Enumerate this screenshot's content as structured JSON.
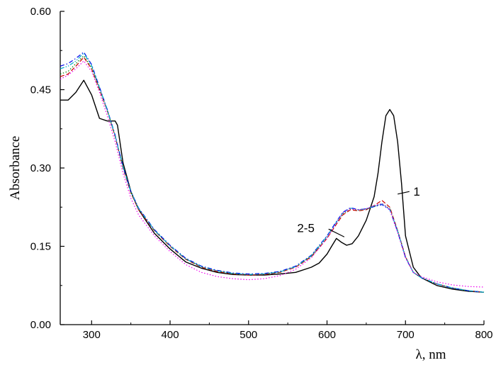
{
  "chart_data": {
    "type": "line",
    "title": "",
    "xlabel": "λ, nm",
    "ylabel": "Absorbance",
    "xlim": [
      260,
      800
    ],
    "ylim": [
      0.0,
      0.6
    ],
    "x_ticks": [
      {
        "value": 300,
        "label": "300"
      },
      {
        "value": 400,
        "label": "400"
      },
      {
        "value": 500,
        "label": "500"
      },
      {
        "value": 600,
        "label": "600"
      },
      {
        "value": 700,
        "label": "700"
      },
      {
        "value": 800,
        "label": "800"
      }
    ],
    "y_ticks": [
      {
        "value": 0.0,
        "label": "0.00"
      },
      {
        "value": 0.15,
        "label": "0.15"
      },
      {
        "value": 0.3,
        "label": "0.30"
      },
      {
        "value": 0.45,
        "label": "0.45"
      },
      {
        "value": 0.6,
        "label": "0.60"
      }
    ],
    "grid": false,
    "legend": "none",
    "series": [
      {
        "color": "#000000",
        "style": "solid",
        "x": [
          260,
          270,
          280,
          290,
          300,
          310,
          320,
          330,
          333,
          340,
          350,
          360,
          380,
          400,
          420,
          440,
          460,
          480,
          500,
          520,
          540,
          560,
          580,
          590,
          600,
          605,
          612,
          618,
          625,
          632,
          640,
          650,
          660,
          665,
          670,
          675,
          680,
          685,
          690,
          695,
          700,
          710,
          720,
          740,
          760,
          780,
          800
        ],
        "y": [
          0.43,
          0.43,
          0.445,
          0.468,
          0.44,
          0.395,
          0.39,
          0.39,
          0.382,
          0.31,
          0.255,
          0.22,
          0.175,
          0.145,
          0.12,
          0.108,
          0.1,
          0.096,
          0.095,
          0.095,
          0.097,
          0.1,
          0.11,
          0.118,
          0.135,
          0.148,
          0.165,
          0.158,
          0.152,
          0.155,
          0.17,
          0.2,
          0.245,
          0.29,
          0.35,
          0.4,
          0.412,
          0.4,
          0.35,
          0.27,
          0.17,
          0.11,
          0.09,
          0.075,
          0.068,
          0.064,
          0.062
        ]
      },
      {
        "color": "#cc0000",
        "style": "dashed",
        "x": [
          260,
          270,
          280,
          290,
          300,
          310,
          320,
          330,
          340,
          350,
          360,
          380,
          400,
          420,
          440,
          460,
          480,
          500,
          520,
          540,
          560,
          580,
          600,
          610,
          620,
          630,
          640,
          650,
          660,
          670,
          680,
          690,
          700,
          710,
          720,
          740,
          760,
          780,
          800
        ],
        "y": [
          0.475,
          0.48,
          0.495,
          0.512,
          0.49,
          0.45,
          0.41,
          0.36,
          0.3,
          0.252,
          0.22,
          0.18,
          0.15,
          0.125,
          0.11,
          0.102,
          0.097,
          0.095,
          0.096,
          0.1,
          0.11,
          0.13,
          0.165,
          0.188,
          0.21,
          0.22,
          0.218,
          0.22,
          0.228,
          0.238,
          0.225,
          0.18,
          0.13,
          0.1,
          0.09,
          0.078,
          0.07,
          0.065,
          0.062
        ]
      },
      {
        "color": "#008000",
        "style": "dotted",
        "x": [
          260,
          270,
          280,
          290,
          300,
          310,
          320,
          330,
          340,
          350,
          360,
          380,
          400,
          420,
          440,
          460,
          480,
          500,
          520,
          540,
          560,
          580,
          600,
          610,
          620,
          630,
          640,
          650,
          660,
          670,
          680,
          690,
          700,
          710,
          720,
          740,
          760,
          780,
          800
        ],
        "y": [
          0.48,
          0.485,
          0.5,
          0.515,
          0.492,
          0.452,
          0.41,
          0.362,
          0.302,
          0.254,
          0.222,
          0.181,
          0.151,
          0.126,
          0.111,
          0.103,
          0.098,
          0.096,
          0.097,
          0.101,
          0.111,
          0.131,
          0.167,
          0.19,
          0.212,
          0.222,
          0.219,
          0.221,
          0.226,
          0.232,
          0.222,
          0.18,
          0.13,
          0.1,
          0.09,
          0.078,
          0.07,
          0.065,
          0.062
        ]
      },
      {
        "color": "#0000ee",
        "style": "dashdot",
        "x": [
          260,
          270,
          280,
          290,
          300,
          310,
          320,
          330,
          340,
          350,
          360,
          380,
          400,
          420,
          440,
          460,
          480,
          500,
          520,
          540,
          560,
          580,
          600,
          610,
          620,
          630,
          640,
          650,
          660,
          670,
          680,
          690,
          700,
          710,
          720,
          740,
          760,
          780,
          800
        ],
        "y": [
          0.495,
          0.5,
          0.51,
          0.522,
          0.498,
          0.455,
          0.412,
          0.363,
          0.303,
          0.255,
          0.223,
          0.182,
          0.152,
          0.127,
          0.112,
          0.104,
          0.099,
          0.097,
          0.098,
          0.102,
          0.112,
          0.133,
          0.17,
          0.193,
          0.215,
          0.224,
          0.22,
          0.222,
          0.226,
          0.23,
          0.22,
          0.178,
          0.128,
          0.1,
          0.09,
          0.078,
          0.07,
          0.065,
          0.062
        ]
      },
      {
        "color": "#00aacc",
        "style": "dashdotdot",
        "x": [
          260,
          270,
          280,
          290,
          300,
          310,
          320,
          330,
          340,
          350,
          360,
          380,
          400,
          420,
          440,
          460,
          480,
          500,
          520,
          540,
          560,
          580,
          600,
          610,
          620,
          630,
          640,
          650,
          660,
          670,
          680,
          690,
          700,
          710,
          720,
          740,
          760,
          780,
          800
        ],
        "y": [
          0.49,
          0.495,
          0.505,
          0.52,
          0.496,
          0.454,
          0.411,
          0.362,
          0.302,
          0.254,
          0.222,
          0.181,
          0.151,
          0.126,
          0.111,
          0.103,
          0.098,
          0.096,
          0.097,
          0.101,
          0.111,
          0.132,
          0.169,
          0.192,
          0.214,
          0.223,
          0.22,
          0.222,
          0.227,
          0.231,
          0.221,
          0.179,
          0.129,
          0.1,
          0.09,
          0.078,
          0.07,
          0.065,
          0.062
        ]
      },
      {
        "color": "#ee00ee",
        "style": "dotted",
        "x": [
          260,
          270,
          280,
          290,
          300,
          310,
          320,
          330,
          340,
          350,
          360,
          380,
          400,
          420,
          440,
          460,
          480,
          500,
          520,
          540,
          560,
          580,
          600,
          610,
          620,
          630,
          640,
          650,
          660,
          670,
          680,
          690,
          700,
          710,
          720,
          740,
          760,
          780,
          800
        ],
        "y": [
          0.47,
          0.478,
          0.49,
          0.505,
          0.485,
          0.445,
          0.4,
          0.35,
          0.29,
          0.242,
          0.21,
          0.17,
          0.14,
          0.115,
          0.1,
          0.092,
          0.088,
          0.086,
          0.088,
          0.094,
          0.106,
          0.128,
          0.165,
          0.19,
          0.214,
          0.222,
          0.22,
          0.222,
          0.228,
          0.232,
          0.22,
          0.176,
          0.128,
          0.1,
          0.092,
          0.082,
          0.076,
          0.073,
          0.072
        ]
      }
    ],
    "annotations": [
      {
        "text": "1",
        "x": 710,
        "y": 0.255,
        "leader_from": [
          705,
          0.255
        ],
        "leader_to": [
          690,
          0.25
        ]
      },
      {
        "text": "2-5",
        "x": 573,
        "y": 0.185,
        "leader_from": [
          602,
          0.183
        ],
        "leader_to": [
          622,
          0.168
        ]
      }
    ]
  }
}
